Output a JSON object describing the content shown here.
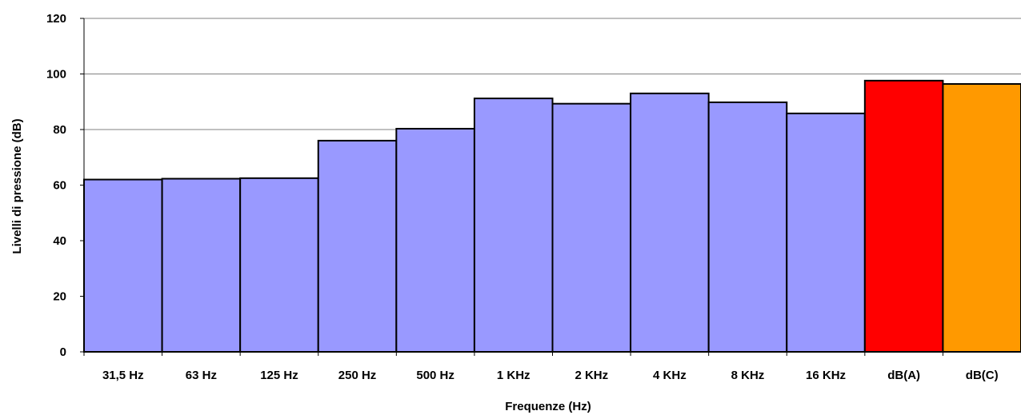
{
  "chart_data": {
    "type": "bar",
    "title": "",
    "xlabel": "Frequenze (Hz)",
    "ylabel": "Livelli di pressione (dB)",
    "ylim": [
      0,
      120
    ],
    "yticks": [
      "0",
      "20",
      "40",
      "60",
      "80",
      "100",
      "120"
    ],
    "grid": true,
    "categories": [
      "31,5 Hz",
      "63 Hz",
      "125 Hz",
      "250 Hz",
      "500 Hz",
      "1 KHz",
      "2 KHz",
      "4 KHz",
      "8 KHz",
      "16 KHz",
      "dB(A)",
      "dB(C)"
    ],
    "values": [
      62,
      62.3,
      62.5,
      76,
      80.3,
      91.2,
      89.3,
      93,
      89.8,
      85.8,
      97.6,
      96.4
    ],
    "colors": [
      "#9999ff",
      "#9999ff",
      "#9999ff",
      "#9999ff",
      "#9999ff",
      "#9999ff",
      "#9999ff",
      "#9999ff",
      "#9999ff",
      "#9999ff",
      "#ff0000",
      "#ff9900"
    ]
  }
}
